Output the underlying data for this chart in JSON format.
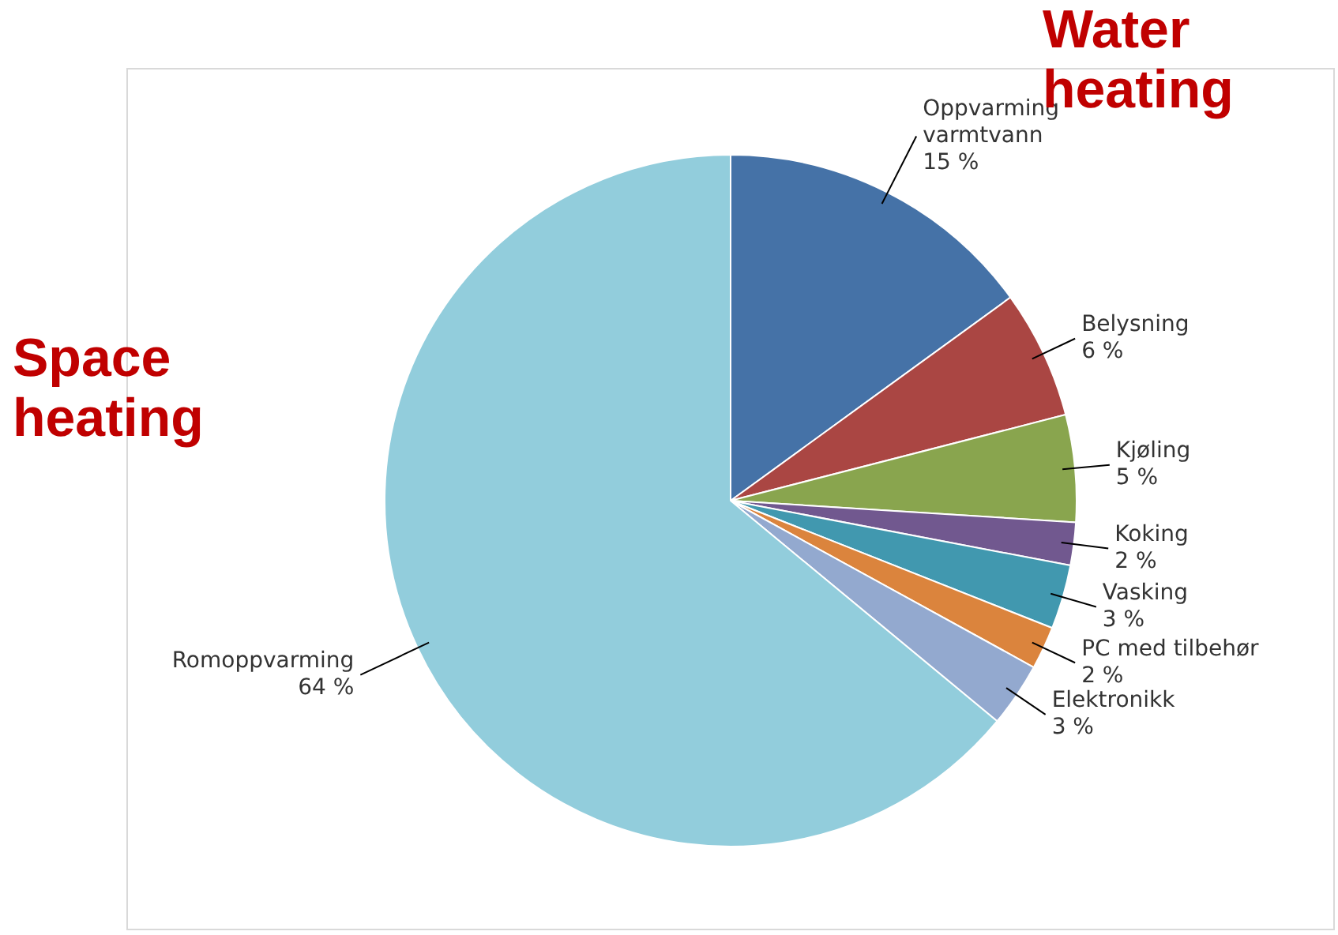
{
  "chart_data": {
    "type": "pie",
    "categories": [
      "Oppvarming varmtvann",
      "Belysning",
      "Kjøling",
      "Koking",
      "Vasking",
      "PC med tilbehør",
      "Elektronikk",
      "Romoppvarming"
    ],
    "values": [
      15,
      6,
      5,
      2,
      3,
      2,
      3,
      64
    ],
    "value_labels": [
      "15 %",
      "6 %",
      "5 %",
      "2 %",
      "3 %",
      "2 %",
      "3 %",
      "64 %"
    ],
    "colors": [
      "#4572a7",
      "#aa4643",
      "#89a54e",
      "#71588f",
      "#4198af",
      "#db843d",
      "#93a9cf",
      "#92cddc"
    ],
    "annotations": [
      "Water heating",
      "Space heating"
    ],
    "legend": false
  }
}
